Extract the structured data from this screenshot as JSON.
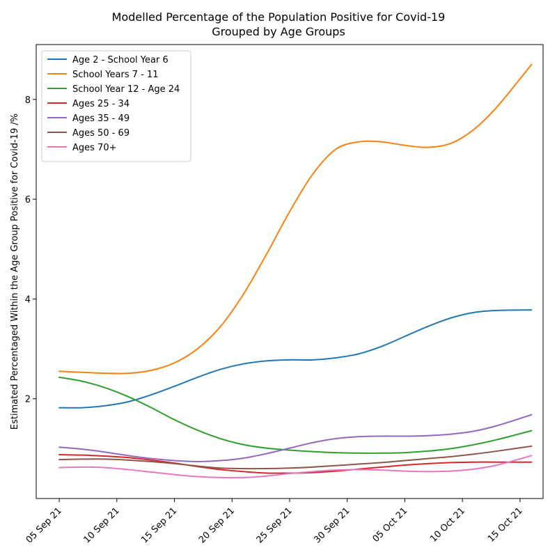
{
  "chart_data": {
    "type": "line",
    "title": "Modelled Percentage of the Population Positive for Covid-19",
    "subtitle": "Grouped by Age Groups",
    "xlabel": "",
    "ylabel": "Estimated Percentaged Within the Age Group Positive for Covid-19 /%",
    "x_ticks": [
      "05 Sep 21",
      "10 Sep 21",
      "15 Sep 21",
      "20 Sep 21",
      "25 Sep 21",
      "30 Sep 21",
      "05 Oct 21",
      "10 Oct 21",
      "15 Oct 21"
    ],
    "y_ticks": [
      "2",
      "4",
      "6",
      "8"
    ],
    "xlim": [
      "2021-09-03",
      "2021-10-17"
    ],
    "ylim": [
      0.0,
      9.1
    ],
    "grid": false,
    "legend_position": "top-left",
    "x": [
      "2021-09-05",
      "2021-09-07",
      "2021-09-09",
      "2021-09-11",
      "2021-09-13",
      "2021-09-15",
      "2021-09-17",
      "2021-09-19",
      "2021-09-21",
      "2021-09-23",
      "2021-09-25",
      "2021-09-27",
      "2021-09-29",
      "2021-10-01",
      "2021-10-03",
      "2021-10-05",
      "2021-10-07",
      "2021-10-09",
      "2021-10-11",
      "2021-10-13",
      "2021-10-16"
    ],
    "series": [
      {
        "name": "Age 2 - School Year 6",
        "color": "#1f77b4",
        "values": [
          1.82,
          1.82,
          1.86,
          1.94,
          2.08,
          2.25,
          2.43,
          2.59,
          2.7,
          2.76,
          2.78,
          2.78,
          2.82,
          2.9,
          3.05,
          3.25,
          3.45,
          3.62,
          3.73,
          3.77,
          3.78
        ]
      },
      {
        "name": "School Years 7 - 11",
        "color": "#ff7f0e",
        "values": [
          2.55,
          2.53,
          2.51,
          2.51,
          2.57,
          2.72,
          3.0,
          3.45,
          4.1,
          4.9,
          5.75,
          6.5,
          7.0,
          7.15,
          7.15,
          7.08,
          7.04,
          7.12,
          7.4,
          7.85,
          8.7
        ]
      },
      {
        "name": "School Year 12 - Age 24",
        "color": "#2ca02c",
        "values": [
          2.43,
          2.35,
          2.22,
          2.04,
          1.82,
          1.58,
          1.37,
          1.2,
          1.08,
          1.01,
          0.97,
          0.94,
          0.92,
          0.91,
          0.91,
          0.92,
          0.95,
          1.0,
          1.08,
          1.18,
          1.36
        ]
      },
      {
        "name": "Ages 25 - 34",
        "color": "#d62728",
        "values": [
          0.88,
          0.87,
          0.85,
          0.82,
          0.77,
          0.71,
          0.64,
          0.58,
          0.54,
          0.51,
          0.51,
          0.52,
          0.55,
          0.59,
          0.63,
          0.67,
          0.7,
          0.72,
          0.73,
          0.73,
          0.73
        ]
      },
      {
        "name": "Ages 35 - 49",
        "color": "#9467bd",
        "values": [
          1.03,
          0.99,
          0.93,
          0.86,
          0.8,
          0.76,
          0.74,
          0.76,
          0.81,
          0.9,
          1.01,
          1.12,
          1.2,
          1.24,
          1.25,
          1.25,
          1.26,
          1.29,
          1.35,
          1.46,
          1.68
        ]
      },
      {
        "name": "Ages 50 - 69",
        "color": "#8c564b",
        "values": [
          0.78,
          0.79,
          0.79,
          0.77,
          0.74,
          0.7,
          0.65,
          0.61,
          0.6,
          0.6,
          0.61,
          0.63,
          0.66,
          0.69,
          0.72,
          0.76,
          0.8,
          0.84,
          0.89,
          0.95,
          1.05
        ]
      },
      {
        "name": "Ages 70+",
        "color": "#e377c2",
        "values": [
          0.62,
          0.63,
          0.62,
          0.58,
          0.53,
          0.48,
          0.44,
          0.42,
          0.42,
          0.45,
          0.5,
          0.54,
          0.57,
          0.58,
          0.57,
          0.55,
          0.54,
          0.55,
          0.59,
          0.67,
          0.86
        ]
      }
    ]
  }
}
